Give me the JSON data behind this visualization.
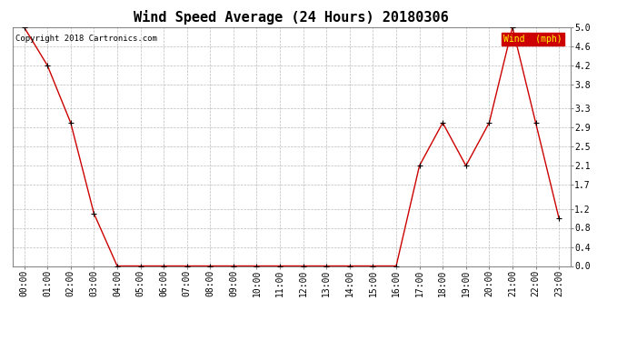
{
  "title": "Wind Speed Average (24 Hours) 20180306",
  "copyright_text": "Copyright 2018 Cartronics.com",
  "legend_label": "Wind  (mph)",
  "x_labels": [
    "00:00",
    "01:00",
    "02:00",
    "03:00",
    "04:00",
    "05:00",
    "06:00",
    "07:00",
    "08:00",
    "09:00",
    "10:00",
    "11:00",
    "12:00",
    "13:00",
    "14:00",
    "15:00",
    "16:00",
    "17:00",
    "18:00",
    "19:00",
    "20:00",
    "21:00",
    "22:00",
    "23:00"
  ],
  "y_values": [
    5.0,
    4.2,
    3.0,
    1.1,
    0.0,
    0.0,
    0.0,
    0.0,
    0.0,
    0.0,
    0.0,
    0.0,
    0.0,
    0.0,
    0.0,
    0.0,
    0.0,
    2.1,
    3.0,
    2.1,
    3.0,
    5.0,
    3.0,
    1.0
  ],
  "ylim": [
    0.0,
    5.0
  ],
  "yticks": [
    0.0,
    0.4,
    0.8,
    1.2,
    1.7,
    2.1,
    2.5,
    2.9,
    3.3,
    3.8,
    4.2,
    4.6,
    5.0
  ],
  "ytick_labels": [
    "0.0",
    "0.4",
    "0.8",
    "1.2",
    "1.7",
    "2.1",
    "2.5",
    "2.9",
    "3.3",
    "3.8",
    "4.2",
    "4.6",
    "5.0"
  ],
  "line_color": "#cc0000",
  "marker_color": "#000000",
  "grid_color": "#bbbbbb",
  "bg_color": "#ffffff",
  "legend_bg": "#cc0000",
  "legend_text_color": "#ffff00",
  "title_fontsize": 11,
  "tick_fontsize": 7,
  "copyright_fontsize": 6.5,
  "legend_fontsize": 7
}
